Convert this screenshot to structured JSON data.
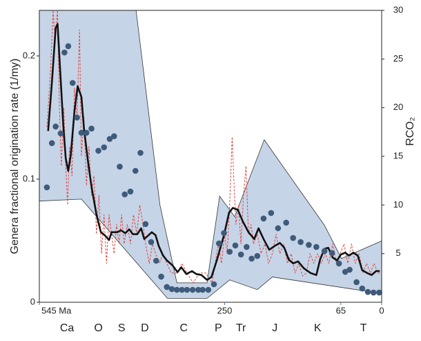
{
  "chart_data": {
    "type": "line",
    "xlim": [
      545,
      0
    ],
    "xticks": [
      {
        "value": 545,
        "label": "545 Ma"
      },
      250,
      65,
      0
    ],
    "ylim": [
      0,
      0.237
    ],
    "yticks": [
      0,
      0.1,
      0.2
    ],
    "y2lim": [
      0,
      30
    ],
    "y2ticks": [
      5,
      10,
      15,
      20,
      25,
      30
    ],
    "ylabel": "Genera fractional origination rate (1/my)",
    "y2label": "RCO₂",
    "periods": [
      {
        "label": "Ca",
        "x": 501
      },
      {
        "label": "O",
        "x": 451
      },
      {
        "label": "S",
        "x": 414
      },
      {
        "label": "D",
        "x": 377
      },
      {
        "label": "C",
        "x": 315
      },
      {
        "label": "P",
        "x": 260
      },
      {
        "label": "Tr",
        "x": 224
      },
      {
        "label": "J",
        "x": 170
      },
      {
        "label": "K",
        "x": 102
      },
      {
        "label": "T",
        "x": 29
      }
    ],
    "series": [
      {
        "type": "band",
        "axis": "y2",
        "color": "#c6d4e7",
        "x_upper": [
          545,
          391,
          353,
          326,
          278,
          258,
          234,
          187,
          91,
          64,
          0
        ],
        "upper": [
          30,
          30,
          10.0,
          2.0,
          2.0,
          10.9,
          8.8,
          16.7,
          7.9,
          4.5,
          6.3
        ],
        "x_lower": [
          545,
          478,
          341,
          278,
          242,
          198,
          174,
          0
        ],
        "lower": [
          10.4,
          10.6,
          0.4,
          0.4,
          2.3,
          1.3,
          2.6,
          0.9
        ]
      },
      {
        "type": "dashed",
        "axis": "y2",
        "color": "#e0453c",
        "x": [
          533,
          527,
          523,
          520,
          516,
          513,
          510,
          506,
          503,
          500,
          497,
          493,
          489,
          485,
          481,
          478,
          474,
          470,
          466,
          462,
          458,
          454,
          450,
          446,
          442,
          438,
          434,
          430,
          426,
          422,
          418,
          414,
          410,
          405,
          400,
          395,
          390,
          385,
          380,
          376,
          370,
          365,
          360,
          354,
          348,
          342,
          335,
          325,
          318,
          310,
          300,
          290,
          280,
          270,
          265,
          260,
          255,
          250,
          246,
          242,
          238,
          235,
          232,
          228,
          224,
          220,
          216,
          212,
          208,
          204,
          198,
          192,
          186,
          180,
          174,
          168,
          162,
          156,
          150,
          144,
          138,
          132,
          126,
          120,
          114,
          108,
          102,
          96,
          90,
          84,
          78,
          72,
          66,
          60,
          54,
          48,
          42,
          36,
          30,
          24,
          18,
          12,
          6,
          0
        ],
        "values": [
          18,
          24,
          30,
          27,
          30,
          20,
          14,
          20,
          14,
          10,
          16,
          13,
          22,
          19,
          28,
          15,
          19,
          12,
          16,
          11,
          13,
          7,
          11,
          5,
          9,
          4,
          9,
          7,
          5,
          8,
          6,
          9,
          6,
          8,
          6,
          9,
          7,
          10,
          8,
          6,
          4,
          6,
          5,
          4,
          5,
          4,
          3,
          3,
          4,
          3,
          2,
          3,
          3,
          2,
          4,
          6,
          4,
          7,
          5,
          10,
          17,
          12,
          8,
          10,
          6,
          11,
          14,
          7,
          8,
          6,
          7,
          5,
          6,
          4,
          5,
          7,
          5,
          6,
          4,
          5,
          3,
          4,
          2.7,
          3,
          5,
          4,
          5,
          4,
          5,
          4,
          6,
          4,
          5,
          6,
          4,
          6,
          4,
          5,
          3,
          4,
          3,
          4,
          3,
          3
        ]
      },
      {
        "type": "line",
        "axis": "y2",
        "color": "#111111",
        "x": [
          531,
          525,
          519,
          516,
          512,
          507,
          503,
          499,
          495,
          489,
          484,
          478,
          474,
          468,
          462,
          454,
          447,
          441,
          434,
          430,
          421,
          415,
          408,
          402,
          396,
          389,
          383,
          378,
          371,
          366,
          360,
          355,
          348,
          342,
          333,
          325,
          319,
          311,
          302,
          295,
          287,
          278,
          271,
          262,
          251,
          243,
          237,
          229,
          221,
          212,
          203,
          196,
          188,
          179,
          170,
          162,
          155,
          148,
          141,
          133,
          124,
          113,
          104,
          98,
          91,
          85,
          78,
          71,
          65,
          58,
          52,
          45,
          38,
          31,
          23,
          16,
          9,
          3
        ],
        "values": [
          17.6,
          22.6,
          28.2,
          28.6,
          24.0,
          18.3,
          14.8,
          13.5,
          15.1,
          19.7,
          22.2,
          21.1,
          17.9,
          14.7,
          11.9,
          9.0,
          7.2,
          6.9,
          6.4,
          7.2,
          7.2,
          7.4,
          7.1,
          7.5,
          7.0,
          7.0,
          7.6,
          6.5,
          6.9,
          7.2,
          6.9,
          5.8,
          4.8,
          4.3,
          3.8,
          3.1,
          3.6,
          2.9,
          3.2,
          2.9,
          2.8,
          2.3,
          2.6,
          4.4,
          6.9,
          9.2,
          9.7,
          9.5,
          8.3,
          7.2,
          6.5,
          7.6,
          6.5,
          5.4,
          5.8,
          6.1,
          5.6,
          4.4,
          4.0,
          4.2,
          3.5,
          3.0,
          2.8,
          4.4,
          5.5,
          5.6,
          4.6,
          4.3,
          4.9,
          5.1,
          4.8,
          5.1,
          4.8,
          3.3,
          3.0,
          2.8,
          3.2,
          3.2
        ]
      },
      {
        "type": "scatter",
        "axis": "y",
        "color": "#3f5b7a",
        "x": [
          533,
          525,
          519,
          511,
          505,
          499,
          492,
          485,
          478,
          470,
          462,
          451,
          442,
          433,
          426,
          417,
          409,
          400,
          392,
          384,
          376,
          367,
          359,
          351,
          342,
          334,
          326,
          318,
          310,
          301,
          292,
          285,
          276,
          267,
          259,
          251,
          242,
          233,
          224,
          215,
          207,
          198,
          188,
          176,
          165,
          152,
          141,
          129,
          116,
          104,
          91,
          79,
          68,
          58,
          51,
          40,
          31,
          22,
          13,
          4
        ],
        "values": [
          0.0933,
          0.1292,
          0.1427,
          0.1371,
          0.2028,
          0.2079,
          0.1781,
          0.15,
          0.1376,
          0.1376,
          0.141,
          0.123,
          0.1258,
          0.1326,
          0.1348,
          0.1101,
          0.0876,
          0.0899,
          0.1067,
          0.1213,
          0.0635,
          0.0489,
          0.0337,
          0.0208,
          0.0124,
          0.0107,
          0.0101,
          0.0101,
          0.0101,
          0.0101,
          0.0101,
          0.0101,
          0.0101,
          0.0146,
          0.0478,
          0.0562,
          0.041,
          0.0461,
          0.0388,
          0.0449,
          0.0354,
          0.0376,
          0.068,
          0.0725,
          0.0601,
          0.0646,
          0.0522,
          0.0489,
          0.0466,
          0.0449,
          0.0416,
          0.0399,
          0.0315,
          0.0247,
          0.0264,
          0.0163,
          0.0112,
          0.0084,
          0.0079,
          0.0079
        ]
      }
    ]
  }
}
